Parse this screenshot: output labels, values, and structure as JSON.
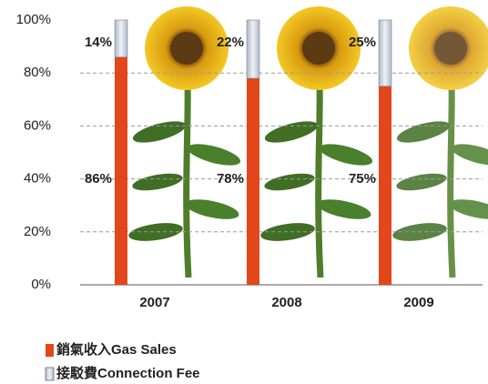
{
  "chart_data": {
    "type": "stacked_bar",
    "categories": [
      "2007",
      "2008",
      "2009"
    ],
    "series": [
      {
        "name": "銷氣收入Gas Sales",
        "color": "#e2471c",
        "values": [
          86,
          78,
          75
        ],
        "value_labels": [
          "86%",
          "78%",
          "75%"
        ]
      },
      {
        "name": "接駁費Connection Fee",
        "color": "#c9d1dd",
        "values": [
          14,
          22,
          25
        ],
        "value_labels": [
          "14%",
          "22%",
          "25%"
        ]
      }
    ],
    "ylim": [
      0,
      100
    ],
    "yticks": [
      {
        "value": 0,
        "label": "0%"
      },
      {
        "value": 20,
        "label": "20%"
      },
      {
        "value": 40,
        "label": "40%"
      },
      {
        "value": 60,
        "label": "60%"
      },
      {
        "value": 80,
        "label": "80%"
      },
      {
        "value": 100,
        "label": "100%"
      }
    ],
    "grid": true
  }
}
